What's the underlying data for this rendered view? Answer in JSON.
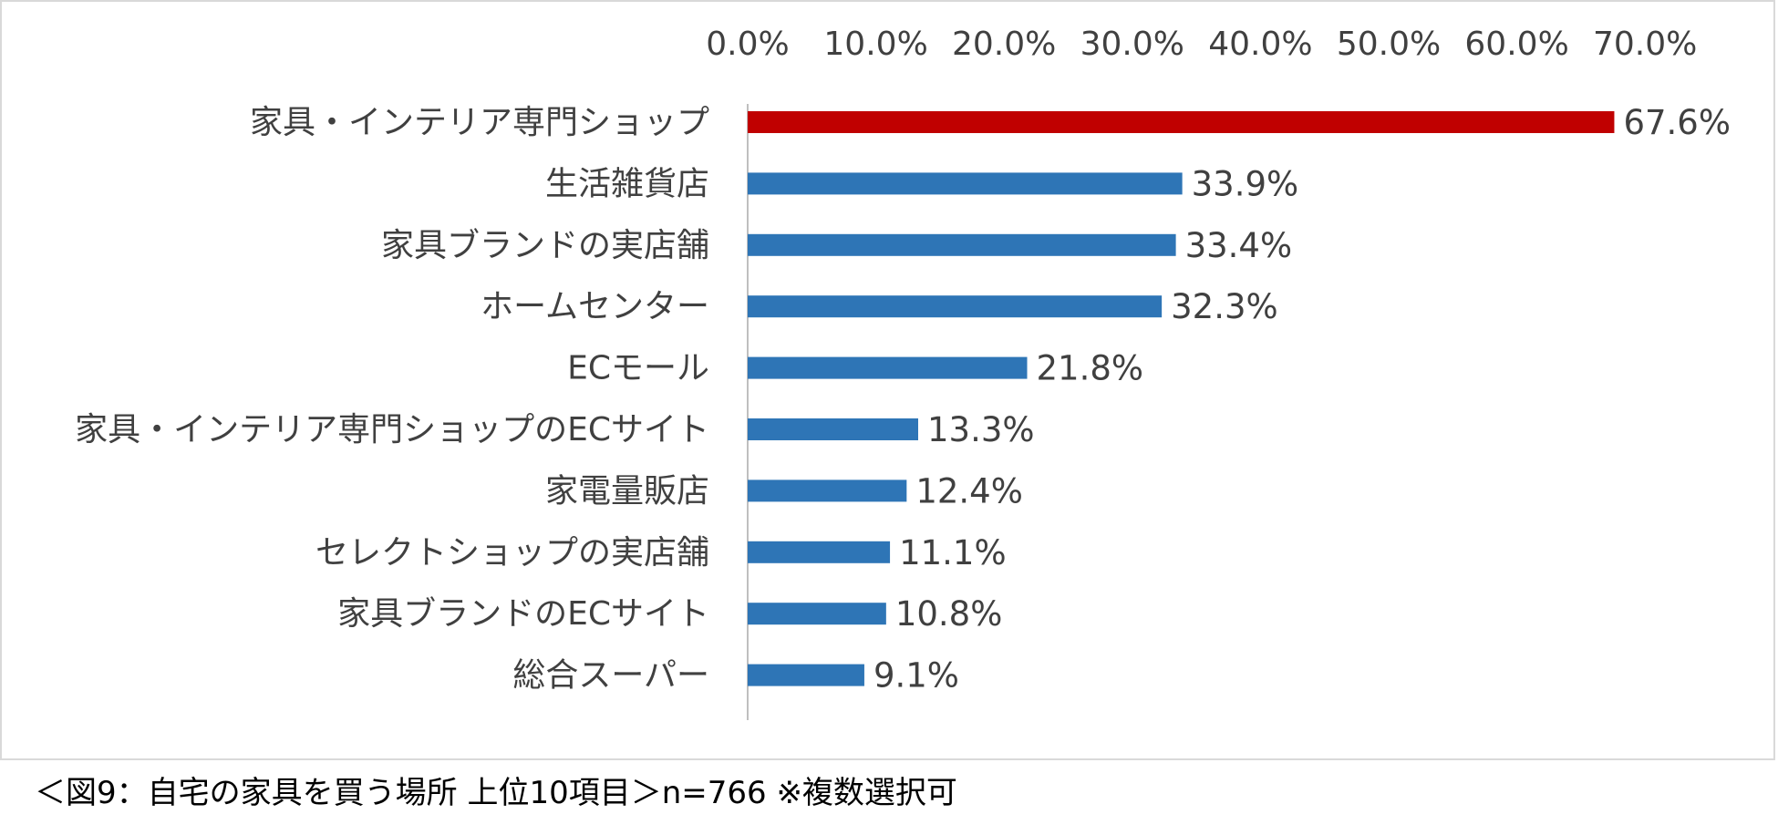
{
  "chart_data": {
    "type": "bar",
    "orientation": "horizontal",
    "categories": [
      "家具・インテリア専門ショップ",
      "生活雑貨店",
      "家具ブランドの実店舗",
      "ホームセンター",
      "ECモール",
      "家具・インテリア専門ショップのECサイト",
      "家電量販店",
      "セレクトショップの実店舗",
      "家具ブランドのECサイト",
      "総合スーパー"
    ],
    "values": [
      67.6,
      33.9,
      33.4,
      32.3,
      21.8,
      13.3,
      12.4,
      11.1,
      10.8,
      9.1
    ],
    "value_labels": [
      "67.6%",
      "33.9%",
      "33.4%",
      "32.3%",
      "21.8%",
      "13.3%",
      "12.4%",
      "11.1%",
      "10.8%",
      "9.1%"
    ],
    "xlim": [
      0,
      70
    ],
    "xticks": [
      0,
      10,
      20,
      30,
      40,
      50,
      60,
      70
    ],
    "xtick_labels": [
      "0.0%",
      "10.0%",
      "20.0%",
      "30.0%",
      "40.0%",
      "50.0%",
      "60.0%",
      "70.0%"
    ],
    "axis_position": "top",
    "grid": false,
    "colors": {
      "highlight": "#c00000",
      "default": "#2e75b6",
      "axis_line": "#bfbfbf",
      "text": "#404040"
    },
    "highlight_index": 0
  },
  "caption": "＜図9：自宅の家具を買う場所 上位10項目＞n=766 ※複数選択可"
}
